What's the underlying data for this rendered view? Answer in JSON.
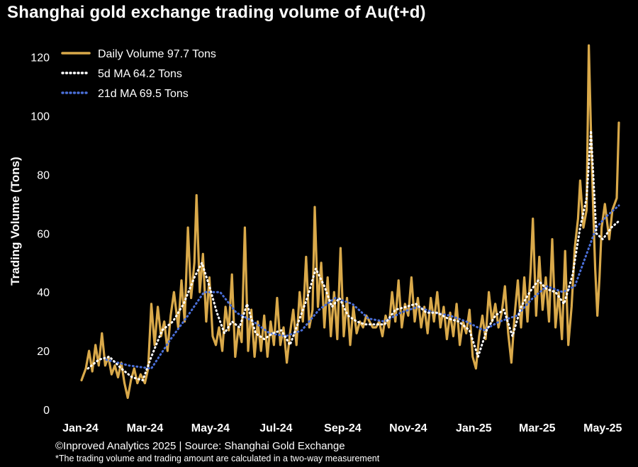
{
  "chart_data": {
    "type": "line",
    "title": "Shanghai gold exchange trading volume of Au(t+d)",
    "ylabel": "Trading Volume (Tons)",
    "xlabel": "",
    "ylim": [
      0,
      125
    ],
    "yticks": [
      0,
      20,
      40,
      60,
      80,
      100,
      120
    ],
    "xticks": [
      "Jan-24",
      "Mar-24",
      "May-24",
      "Jul-24",
      "Sep-24",
      "Nov-24",
      "Jan-25",
      "Mar-25",
      "May-25"
    ],
    "x_range": [
      "2024-01-02",
      "2025-05-16"
    ],
    "grid": false,
    "legend_position": "top-left",
    "series": [
      {
        "name": "Daily Volume 97.7 Tons",
        "color": "#d9a94a",
        "style": "solid",
        "points": [
          [
            "2024-01-02",
            10
          ],
          [
            "2024-01-06",
            14
          ],
          [
            "2024-01-09",
            20
          ],
          [
            "2024-01-12",
            13
          ],
          [
            "2024-01-15",
            22
          ],
          [
            "2024-01-18",
            15
          ],
          [
            "2024-01-21",
            26
          ],
          [
            "2024-01-24",
            15
          ],
          [
            "2024-01-27",
            18
          ],
          [
            "2024-01-30",
            12
          ],
          [
            "2024-02-02",
            15
          ],
          [
            "2024-02-05",
            11
          ],
          [
            "2024-02-08",
            16
          ],
          [
            "2024-02-11",
            9
          ],
          [
            "2024-02-14",
            4
          ],
          [
            "2024-02-17",
            10
          ],
          [
            "2024-02-20",
            14
          ],
          [
            "2024-02-23",
            9
          ],
          [
            "2024-02-26",
            12
          ],
          [
            "2024-03-01",
            9
          ],
          [
            "2024-03-04",
            14
          ],
          [
            "2024-03-07",
            36
          ],
          [
            "2024-03-10",
            22
          ],
          [
            "2024-03-13",
            35
          ],
          [
            "2024-03-16",
            25
          ],
          [
            "2024-03-19",
            30
          ],
          [
            "2024-03-22",
            20
          ],
          [
            "2024-03-25",
            32
          ],
          [
            "2024-03-28",
            40
          ],
          [
            "2024-04-01",
            28
          ],
          [
            "2024-04-04",
            44
          ],
          [
            "2024-04-07",
            30
          ],
          [
            "2024-04-10",
            62
          ],
          [
            "2024-04-13",
            38
          ],
          [
            "2024-04-16",
            50
          ],
          [
            "2024-04-18",
            73
          ],
          [
            "2024-04-21",
            40
          ],
          [
            "2024-04-24",
            53
          ],
          [
            "2024-04-27",
            30
          ],
          [
            "2024-04-30",
            45
          ],
          [
            "2024-05-03",
            25
          ],
          [
            "2024-05-06",
            22
          ],
          [
            "2024-05-09",
            28
          ],
          [
            "2024-05-12",
            20
          ],
          [
            "2024-05-15",
            35
          ],
          [
            "2024-05-18",
            27
          ],
          [
            "2024-05-21",
            46
          ],
          [
            "2024-05-24",
            18
          ],
          [
            "2024-05-27",
            28
          ],
          [
            "2024-05-30",
            23
          ],
          [
            "2024-06-02",
            62
          ],
          [
            "2024-06-05",
            20
          ],
          [
            "2024-06-08",
            34
          ],
          [
            "2024-06-11",
            18
          ],
          [
            "2024-06-14",
            30
          ],
          [
            "2024-06-17",
            20
          ],
          [
            "2024-06-20",
            32
          ],
          [
            "2024-06-23",
            18
          ],
          [
            "2024-06-26",
            30
          ],
          [
            "2024-06-29",
            22
          ],
          [
            "2024-07-02",
            38
          ],
          [
            "2024-07-05",
            22
          ],
          [
            "2024-07-08",
            28
          ],
          [
            "2024-07-11",
            16
          ],
          [
            "2024-07-14",
            26
          ],
          [
            "2024-07-17",
            34
          ],
          [
            "2024-07-20",
            22
          ],
          [
            "2024-07-23",
            40
          ],
          [
            "2024-07-26",
            30
          ],
          [
            "2024-07-29",
            52
          ],
          [
            "2024-08-01",
            28
          ],
          [
            "2024-08-04",
            34
          ],
          [
            "2024-08-06",
            69
          ],
          [
            "2024-08-09",
            35
          ],
          [
            "2024-08-12",
            50
          ],
          [
            "2024-08-15",
            28
          ],
          [
            "2024-08-18",
            45
          ],
          [
            "2024-08-21",
            25
          ],
          [
            "2024-08-24",
            40
          ],
          [
            "2024-08-27",
            24
          ],
          [
            "2024-08-30",
            55
          ],
          [
            "2024-09-02",
            25
          ],
          [
            "2024-09-05",
            38
          ],
          [
            "2024-09-08",
            22
          ],
          [
            "2024-09-11",
            35
          ],
          [
            "2024-09-14",
            26
          ],
          [
            "2024-09-17",
            30
          ],
          [
            "2024-09-20",
            28
          ],
          [
            "2024-09-23",
            32
          ],
          [
            "2024-09-26",
            30
          ],
          [
            "2024-09-29",
            28
          ],
          [
            "2024-10-02",
            28
          ],
          [
            "2024-10-05",
            30
          ],
          [
            "2024-10-08",
            25
          ],
          [
            "2024-10-11",
            32
          ],
          [
            "2024-10-14",
            28
          ],
          [
            "2024-10-17",
            40
          ],
          [
            "2024-10-20",
            30
          ],
          [
            "2024-10-23",
            44
          ],
          [
            "2024-10-26",
            28
          ],
          [
            "2024-10-29",
            36
          ],
          [
            "2024-11-01",
            32
          ],
          [
            "2024-11-04",
            45
          ],
          [
            "2024-11-07",
            30
          ],
          [
            "2024-11-10",
            38
          ],
          [
            "2024-11-13",
            28
          ],
          [
            "2024-11-16",
            35
          ],
          [
            "2024-11-19",
            26
          ],
          [
            "2024-11-22",
            38
          ],
          [
            "2024-11-25",
            30
          ],
          [
            "2024-11-28",
            40
          ],
          [
            "2024-12-01",
            28
          ],
          [
            "2024-12-04",
            35
          ],
          [
            "2024-12-07",
            24
          ],
          [
            "2024-12-10",
            33
          ],
          [
            "2024-12-13",
            25
          ],
          [
            "2024-12-16",
            36
          ],
          [
            "2024-12-19",
            22
          ],
          [
            "2024-12-22",
            30
          ],
          [
            "2024-12-25",
            26
          ],
          [
            "2024-12-28",
            34
          ],
          [
            "2024-12-31",
            18
          ],
          [
            "2025-01-03",
            14
          ],
          [
            "2025-01-06",
            25
          ],
          [
            "2025-01-09",
            32
          ],
          [
            "2025-01-12",
            24
          ],
          [
            "2025-01-15",
            40
          ],
          [
            "2025-01-18",
            30
          ],
          [
            "2025-01-21",
            36
          ],
          [
            "2025-01-24",
            28
          ],
          [
            "2025-01-27",
            33
          ],
          [
            "2025-01-30",
            42
          ],
          [
            "2025-02-02",
            26
          ],
          [
            "2025-02-05",
            16
          ],
          [
            "2025-02-08",
            32
          ],
          [
            "2025-02-11",
            44
          ],
          [
            "2025-02-14",
            28
          ],
          [
            "2025-02-17",
            45
          ],
          [
            "2025-02-20",
            30
          ],
          [
            "2025-02-23",
            48
          ],
          [
            "2025-02-25",
            65
          ],
          [
            "2025-02-28",
            32
          ],
          [
            "2025-03-03",
            52
          ],
          [
            "2025-03-06",
            34
          ],
          [
            "2025-03-09",
            45
          ],
          [
            "2025-03-12",
            30
          ],
          [
            "2025-03-15",
            58
          ],
          [
            "2025-03-18",
            28
          ],
          [
            "2025-03-21",
            40
          ],
          [
            "2025-03-24",
            24
          ],
          [
            "2025-03-27",
            54
          ],
          [
            "2025-03-30",
            22
          ],
          [
            "2025-04-02",
            35
          ],
          [
            "2025-04-05",
            55
          ],
          [
            "2025-04-08",
            65
          ],
          [
            "2025-04-10",
            78
          ],
          [
            "2025-04-13",
            62
          ],
          [
            "2025-04-16",
            68
          ],
          [
            "2025-04-18",
            124
          ],
          [
            "2025-04-20",
            95
          ],
          [
            "2025-04-22",
            70
          ],
          [
            "2025-04-24",
            48
          ],
          [
            "2025-04-26",
            32
          ],
          [
            "2025-04-28",
            45
          ],
          [
            "2025-04-30",
            62
          ],
          [
            "2025-05-03",
            70
          ],
          [
            "2025-05-07",
            58
          ],
          [
            "2025-05-10",
            68
          ],
          [
            "2025-05-14",
            72
          ],
          [
            "2025-05-16",
            97.7
          ]
        ]
      },
      {
        "name": "5d MA 64.2 Tons",
        "color": "#ffffff",
        "style": "dotted",
        "points": [
          [
            "2024-01-08",
            14
          ],
          [
            "2024-01-18",
            17
          ],
          [
            "2024-01-28",
            18
          ],
          [
            "2024-02-08",
            14
          ],
          [
            "2024-02-18",
            11
          ],
          [
            "2024-02-28",
            10
          ],
          [
            "2024-03-07",
            18
          ],
          [
            "2024-03-17",
            27
          ],
          [
            "2024-03-27",
            30
          ],
          [
            "2024-04-06",
            36
          ],
          [
            "2024-04-16",
            45
          ],
          [
            "2024-04-23",
            50
          ],
          [
            "2024-04-30",
            42
          ],
          [
            "2024-05-07",
            33
          ],
          [
            "2024-05-14",
            26
          ],
          [
            "2024-05-21",
            30
          ],
          [
            "2024-05-28",
            28
          ],
          [
            "2024-06-04",
            36
          ],
          [
            "2024-06-12",
            26
          ],
          [
            "2024-06-20",
            24
          ],
          [
            "2024-06-28",
            26
          ],
          [
            "2024-07-06",
            27
          ],
          [
            "2024-07-14",
            22
          ],
          [
            "2024-07-22",
            30
          ],
          [
            "2024-07-30",
            38
          ],
          [
            "2024-08-07",
            48
          ],
          [
            "2024-08-15",
            42
          ],
          [
            "2024-08-22",
            35
          ],
          [
            "2024-08-29",
            38
          ],
          [
            "2024-09-06",
            32
          ],
          [
            "2024-09-14",
            30
          ],
          [
            "2024-09-22",
            29
          ],
          [
            "2024-10-01",
            29
          ],
          [
            "2024-10-10",
            29
          ],
          [
            "2024-10-20",
            34
          ],
          [
            "2024-10-30",
            35
          ],
          [
            "2024-11-08",
            36
          ],
          [
            "2024-11-18",
            33
          ],
          [
            "2024-11-28",
            33
          ],
          [
            "2024-12-08",
            31
          ],
          [
            "2024-12-18",
            30
          ],
          [
            "2024-12-28",
            27
          ],
          [
            "2025-01-05",
            18
          ],
          [
            "2025-01-13",
            27
          ],
          [
            "2025-01-21",
            32
          ],
          [
            "2025-01-29",
            34
          ],
          [
            "2025-02-06",
            25
          ],
          [
            "2025-02-14",
            35
          ],
          [
            "2025-02-22",
            40
          ],
          [
            "2025-03-02",
            44
          ],
          [
            "2025-03-10",
            41
          ],
          [
            "2025-03-18",
            40
          ],
          [
            "2025-03-26",
            36
          ],
          [
            "2025-04-03",
            46
          ],
          [
            "2025-04-10",
            62
          ],
          [
            "2025-04-16",
            72
          ],
          [
            "2025-04-20",
            95
          ],
          [
            "2025-04-25",
            60
          ],
          [
            "2025-05-01",
            58
          ],
          [
            "2025-05-09",
            62
          ],
          [
            "2025-05-16",
            64.2
          ]
        ]
      },
      {
        "name": "21d MA 69.5 Tons",
        "color": "#4a6fd8",
        "style": "dotted",
        "points": [
          [
            "2024-01-25",
            17
          ],
          [
            "2024-02-15",
            15
          ],
          [
            "2024-03-07",
            14
          ],
          [
            "2024-03-25",
            24
          ],
          [
            "2024-04-10",
            32
          ],
          [
            "2024-04-25",
            40
          ],
          [
            "2024-05-10",
            40
          ],
          [
            "2024-05-25",
            33
          ],
          [
            "2024-06-10",
            30
          ],
          [
            "2024-06-25",
            26
          ],
          [
            "2024-07-10",
            25
          ],
          [
            "2024-07-25",
            27
          ],
          [
            "2024-08-10",
            34
          ],
          [
            "2024-08-25",
            38
          ],
          [
            "2024-09-10",
            36
          ],
          [
            "2024-09-25",
            31
          ],
          [
            "2024-10-10",
            30
          ],
          [
            "2024-10-25",
            33
          ],
          [
            "2024-11-10",
            35
          ],
          [
            "2024-11-25",
            33
          ],
          [
            "2024-12-10",
            32
          ],
          [
            "2024-12-25",
            30
          ],
          [
            "2025-01-10",
            27
          ],
          [
            "2025-01-25",
            30
          ],
          [
            "2025-02-10",
            32
          ],
          [
            "2025-02-25",
            38
          ],
          [
            "2025-03-10",
            42
          ],
          [
            "2025-03-25",
            40
          ],
          [
            "2025-04-05",
            42
          ],
          [
            "2025-04-15",
            52
          ],
          [
            "2025-04-25",
            62
          ],
          [
            "2025-05-05",
            66
          ],
          [
            "2025-05-16",
            69.5
          ]
        ]
      }
    ]
  },
  "footer": {
    "source": "©Inproved Analytics 2025 | Source: Shanghai Gold Exchange",
    "note": "*The trading volume and trading amount are calculated in a two-way measurement"
  }
}
